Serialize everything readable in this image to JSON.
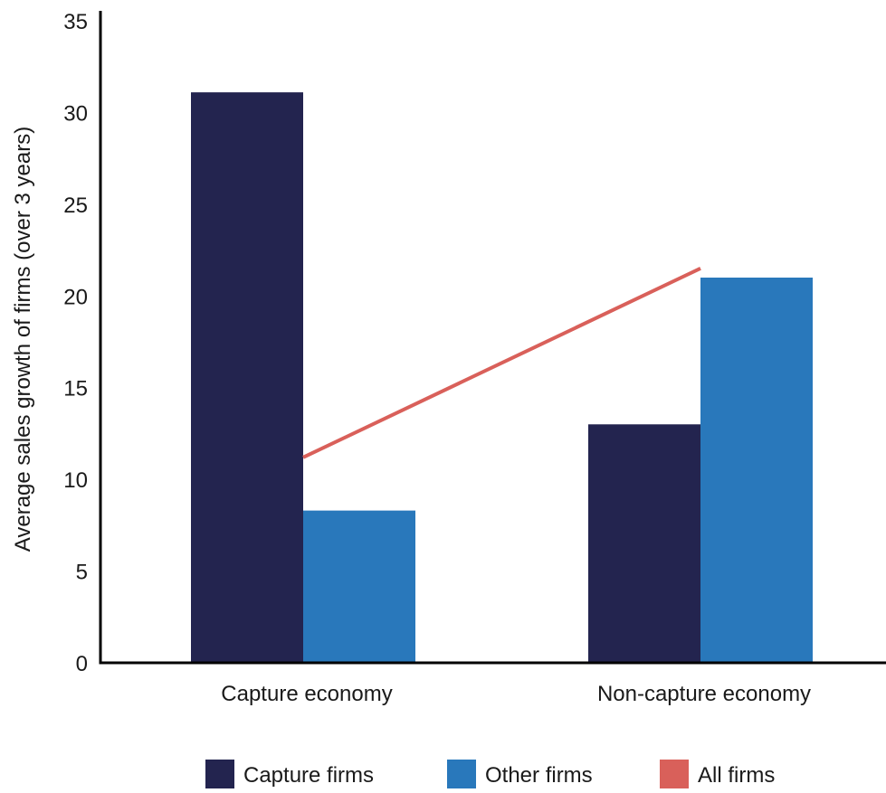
{
  "chart_data": {
    "type": "bar",
    "title": "",
    "xlabel": "",
    "ylabel": "Average sales growth of firms (over 3 years)",
    "ylim": [
      0,
      35
    ],
    "yticks": [
      0,
      5,
      10,
      15,
      20,
      25,
      30,
      35
    ],
    "categories": [
      "Capture economy",
      "Non-capture economy"
    ],
    "series": [
      {
        "name": "Capture firms",
        "type": "bar",
        "color": "#23244f",
        "values": [
          31.1,
          13.0
        ]
      },
      {
        "name": "Other firms",
        "type": "bar",
        "color": "#2978bb",
        "values": [
          8.3,
          21.0
        ]
      },
      {
        "name": "All firms",
        "type": "line",
        "color": "#d9605a",
        "values": [
          11.2,
          21.5
        ]
      }
    ],
    "legend": {
      "position": "bottom",
      "items": [
        "Capture firms",
        "Other firms",
        "All firms"
      ]
    },
    "grid": false
  }
}
